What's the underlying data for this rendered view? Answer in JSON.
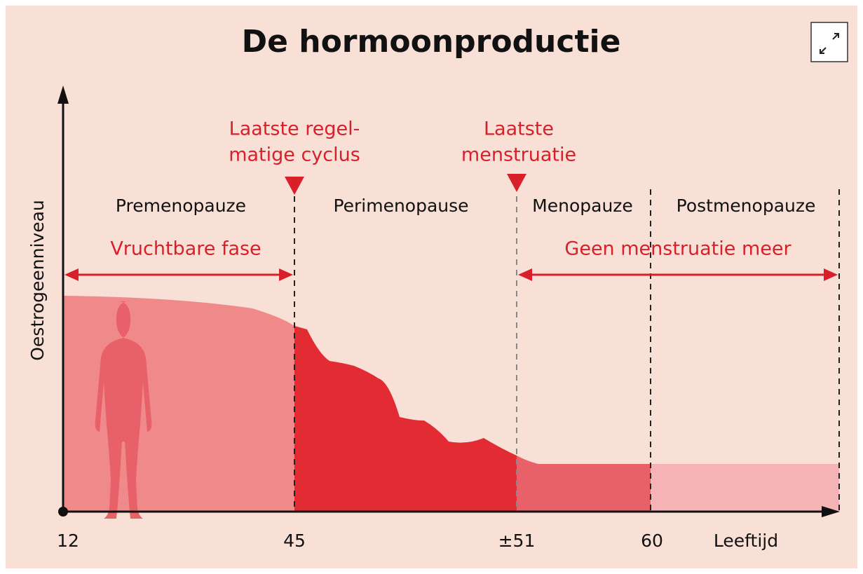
{
  "title": "De hormoonproductie",
  "y_axis_label": "Oestrogeenniveau",
  "x_axis_label": "Leeftijd",
  "x_labels": [
    "12",
    "45",
    "±51",
    "60"
  ],
  "phases": [
    "Premenopauze",
    "Perimenopause",
    "Menopauze",
    "Postmenopauze"
  ],
  "ranges": [
    "Vruchtbare fase",
    "Geen menstruatie meer"
  ],
  "markers": [
    {
      "lines": [
        "Laatste regel-",
        "matige cyclus"
      ]
    },
    {
      "lines": [
        "Laatste",
        "menstruatie"
      ]
    }
  ]
}
